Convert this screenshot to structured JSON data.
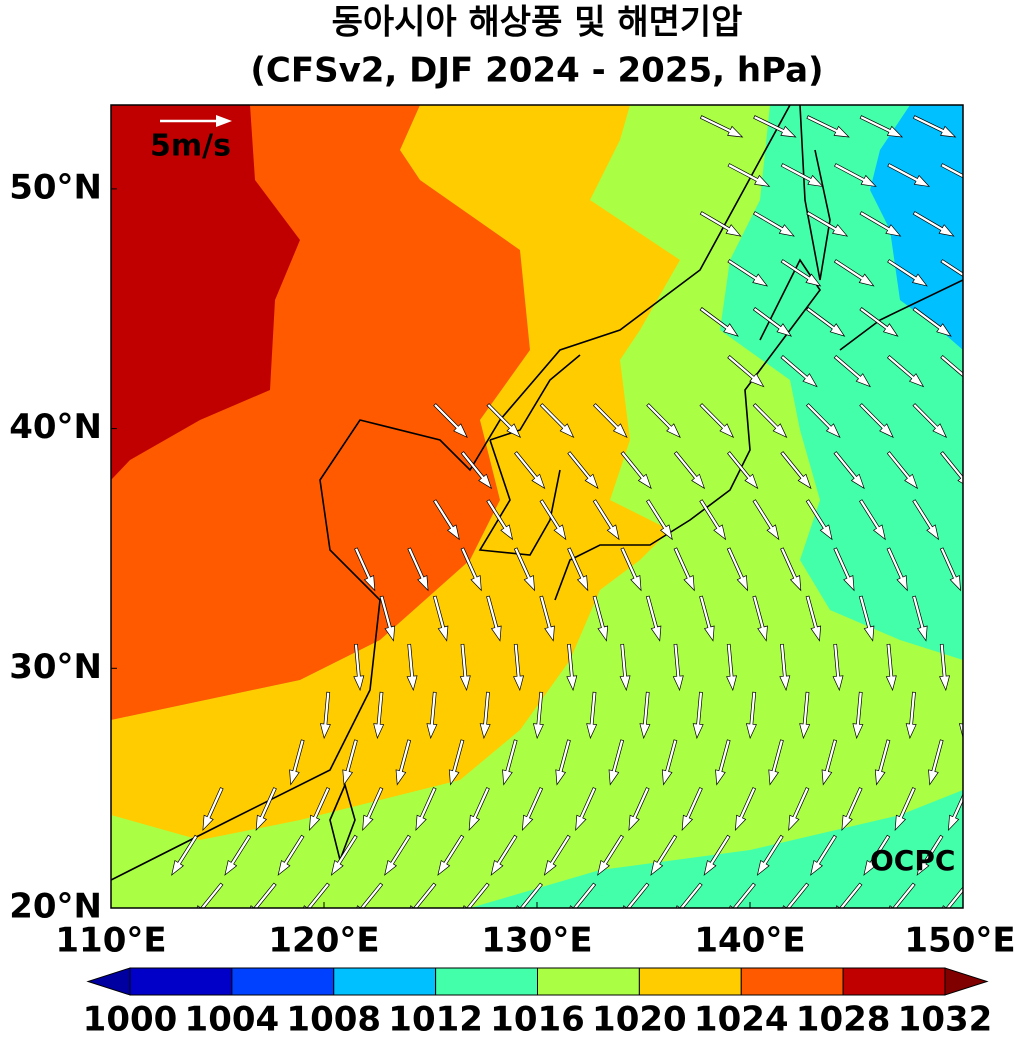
{
  "chart_data": {
    "type": "map",
    "title": "동아시아 해상풍 및 해면기압",
    "subtitle": "(CFSv2, DJF 2024 - 2025, hPa)",
    "xlim": [
      110,
      150
    ],
    "ylim": [
      20,
      53.5
    ],
    "xticks": [
      {
        "value": 110,
        "label": "110°E"
      },
      {
        "value": 120,
        "label": "120°E"
      },
      {
        "value": 130,
        "label": "130°E"
      },
      {
        "value": 140,
        "label": "140°E"
      },
      {
        "value": 150,
        "label": "150°E"
      }
    ],
    "yticks": [
      {
        "value": 20,
        "label": "20°N"
      },
      {
        "value": 30,
        "label": "30°N"
      },
      {
        "value": 40,
        "label": "40°N"
      },
      {
        "value": 50,
        "label": "50°N"
      }
    ],
    "reference_vector": "5m/s",
    "credit": "OCPC",
    "colorbar": {
      "levels": [
        1000,
        1004,
        1008,
        1012,
        1016,
        1020,
        1024,
        1028,
        1032
      ],
      "colors": [
        "#0000c8",
        "#0040ff",
        "#00c0ff",
        "#44ffaa",
        "#aaff44",
        "#ffcc00",
        "#ff5a00",
        "#c00000"
      ],
      "under_color": "#0000a0",
      "over_color": "#800000"
    }
  }
}
